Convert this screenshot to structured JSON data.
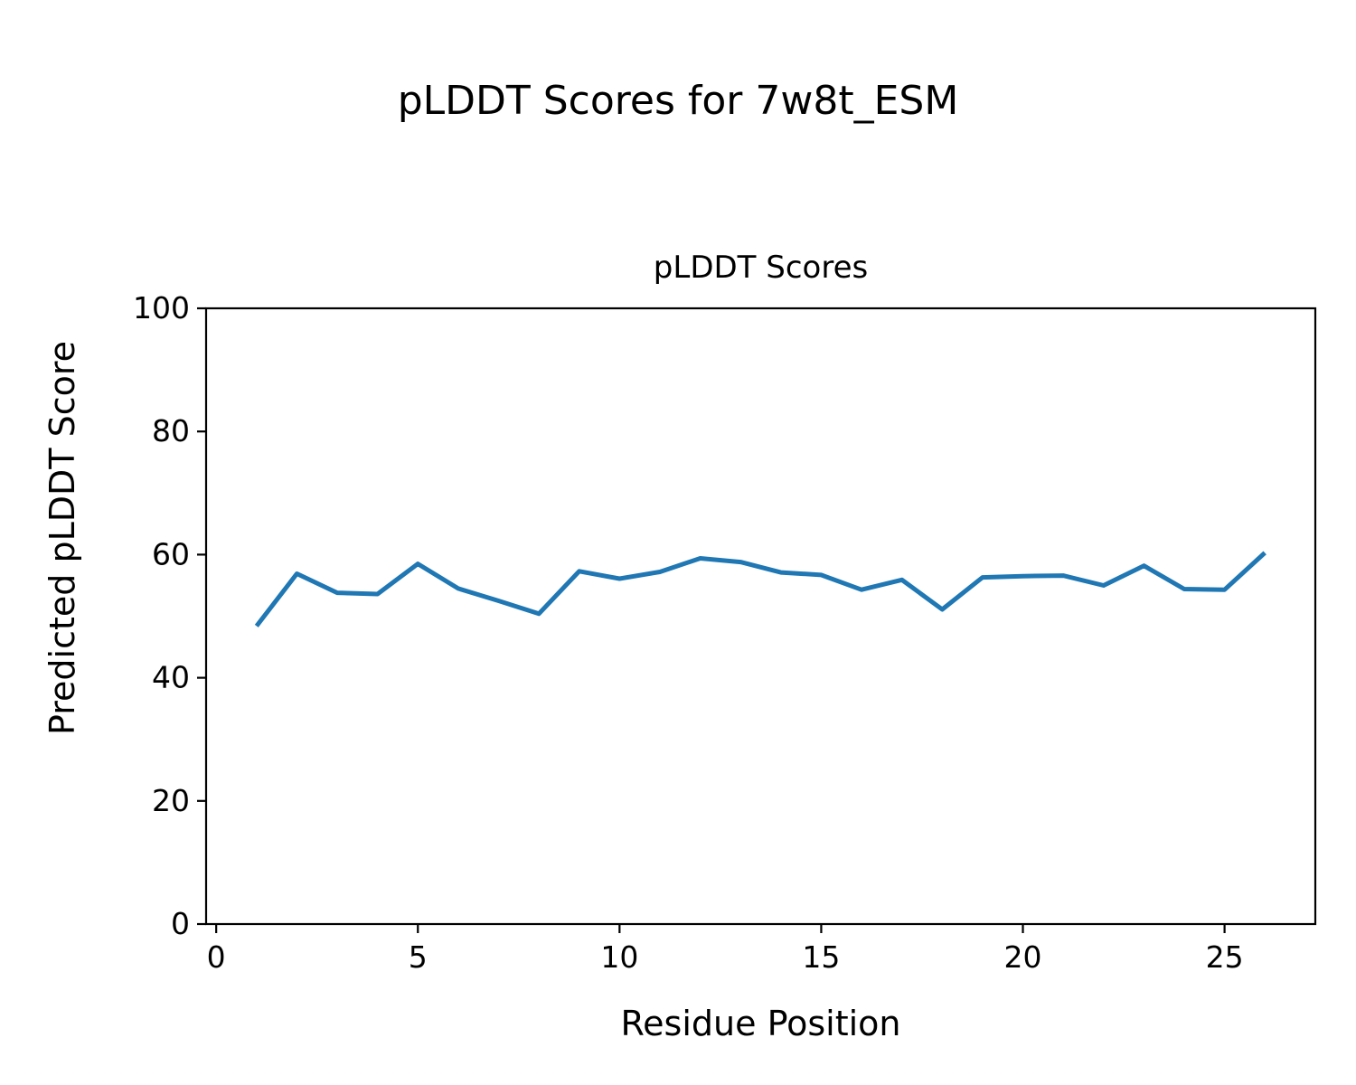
{
  "figure": {
    "suptitle": "pLDDT Scores for 7w8t_ESM",
    "background_color": "#ffffff",
    "text_color": "#000000"
  },
  "chart_data": {
    "type": "line",
    "title": "pLDDT Scores",
    "xlabel": "Residue Position",
    "ylabel": "Predicted pLDDT Score",
    "x": [
      1,
      2,
      3,
      4,
      5,
      6,
      7,
      8,
      9,
      10,
      11,
      12,
      13,
      14,
      15,
      16,
      17,
      18,
      19,
      20,
      21,
      22,
      23,
      24,
      25,
      26
    ],
    "values": [
      48.4,
      56.9,
      53.8,
      53.6,
      58.5,
      54.5,
      52.5,
      50.4,
      57.3,
      56.1,
      57.2,
      59.4,
      58.8,
      57.1,
      56.7,
      54.3,
      55.9,
      51.1,
      56.3,
      56.5,
      56.6,
      55.0,
      58.2,
      54.4,
      54.3,
      60.3
    ],
    "xlim": [
      -0.25,
      27.25
    ],
    "ylim": [
      0,
      100
    ],
    "x_ticks": [
      0,
      5,
      10,
      15,
      20,
      25
    ],
    "y_ticks": [
      0,
      20,
      40,
      60,
      80,
      100
    ],
    "line_color": "#1f77b4",
    "line_width": 5,
    "spine_color": "#000000",
    "grid": false,
    "legend": "none"
  }
}
